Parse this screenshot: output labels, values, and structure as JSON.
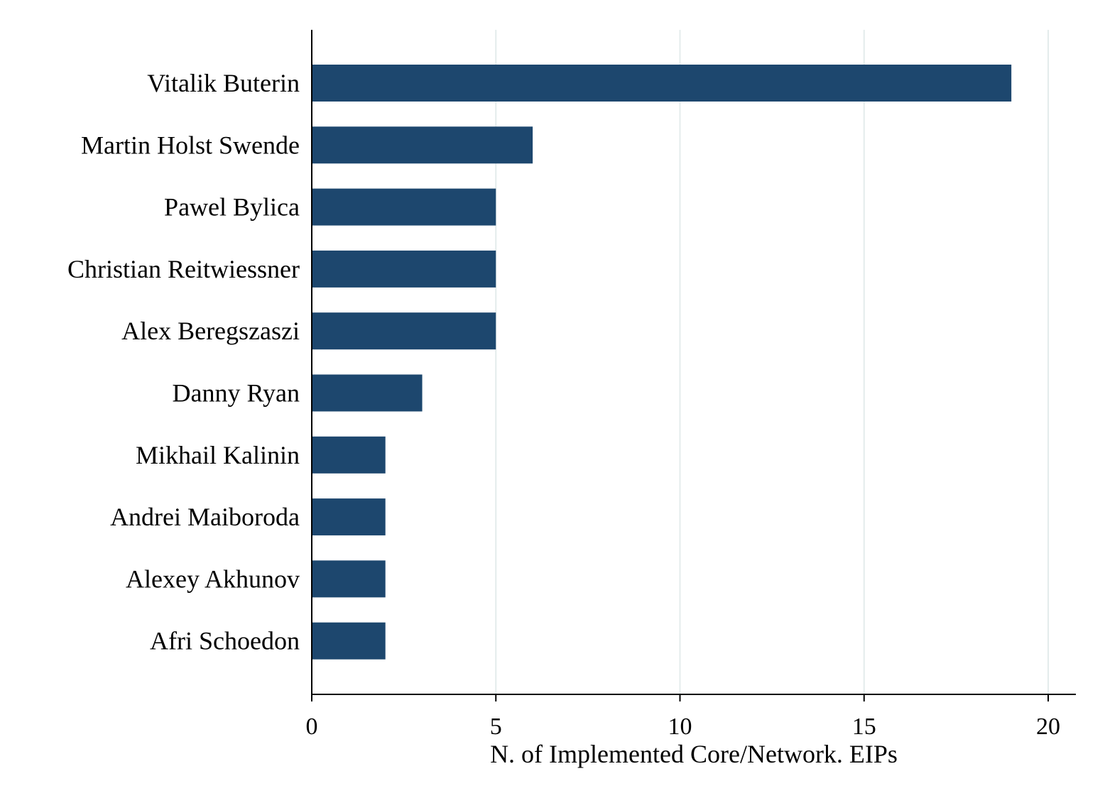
{
  "chart_data": {
    "type": "bar",
    "orientation": "horizontal",
    "categories": [
      "Vitalik Buterin",
      "Martin Holst Swende",
      "Pawel Bylica",
      "Christian Reitwiessner",
      "Alex Beregszaszi",
      "Danny Ryan",
      "Mikhail Kalinin",
      "Andrei Maiboroda",
      "Alexey Akhunov",
      "Afri Schoedon"
    ],
    "values": [
      19,
      6,
      5,
      5,
      5,
      3,
      2,
      2,
      2,
      2
    ],
    "xlabel": "N. of Implemented Core/Network. EIPs",
    "xlim": [
      0,
      20
    ],
    "xticks": [
      0,
      5,
      10,
      15,
      20
    ],
    "grid": "vertical",
    "colors": {
      "bar": "#1d476e",
      "grid": "#e4ecec",
      "axis": "#000000"
    }
  }
}
